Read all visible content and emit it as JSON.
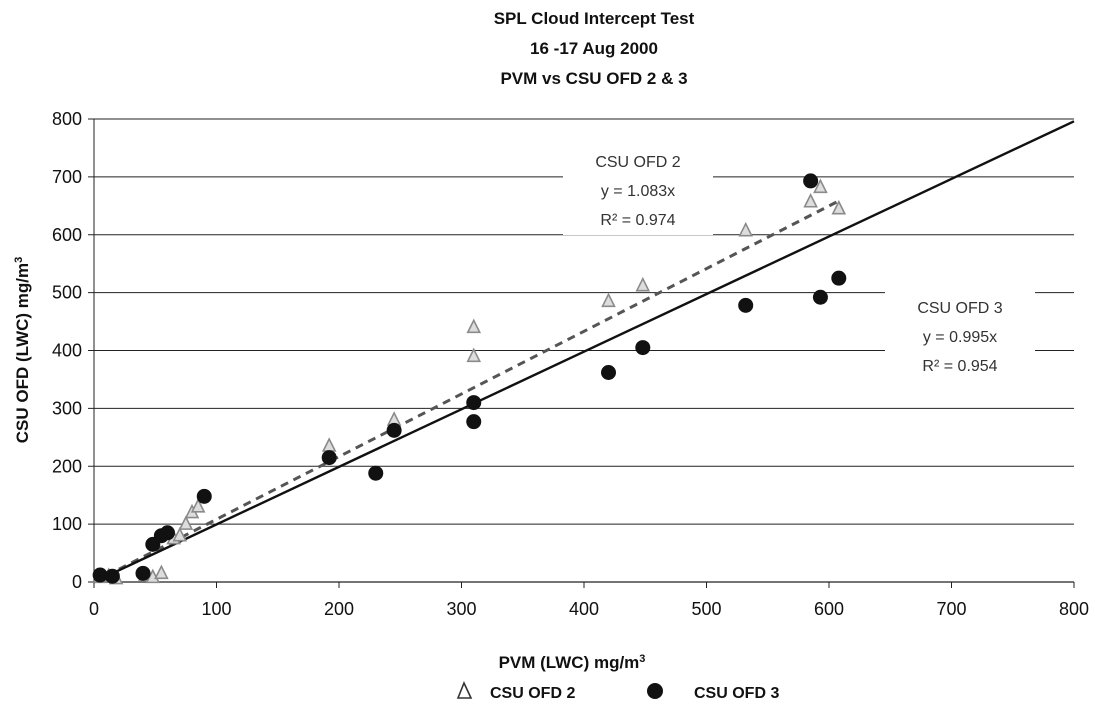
{
  "chart_data": {
    "type": "scatter",
    "title": [
      "SPL Cloud Intercept Test",
      "16 -17 Aug 2000",
      "PVM vs CSU OFD 2 &  3"
    ],
    "xlabel": "PVM (LWC) mg/m",
    "xlabel_sup": "3",
    "ylabel": "CSU OFD (LWC) mg/m",
    "ylabel_sup": "3",
    "xlim": [
      0,
      800
    ],
    "ylim": [
      0,
      800
    ],
    "xticks": [
      0,
      100,
      200,
      300,
      400,
      500,
      600,
      700,
      800
    ],
    "yticks": [
      0,
      100,
      200,
      300,
      400,
      500,
      600,
      700,
      800
    ],
    "grid": "horizontal",
    "series": [
      {
        "name": "CSU OFD 2",
        "marker": "triangle",
        "color": "#8a8a8a",
        "points": [
          [
            5,
            8
          ],
          [
            12,
            10
          ],
          [
            18,
            6
          ],
          [
            42,
            12
          ],
          [
            48,
            8
          ],
          [
            55,
            15
          ],
          [
            65,
            75
          ],
          [
            70,
            80
          ],
          [
            75,
            100
          ],
          [
            80,
            120
          ],
          [
            85,
            130
          ],
          [
            192,
            235
          ],
          [
            245,
            280
          ],
          [
            310,
            440
          ],
          [
            310,
            390
          ],
          [
            420,
            485
          ],
          [
            448,
            512
          ],
          [
            532,
            607
          ],
          [
            585,
            657
          ],
          [
            593,
            682
          ],
          [
            608,
            645
          ]
        ],
        "fit": {
          "slope": 1.083,
          "line_style": "dashed"
        },
        "annotation": [
          "CSU OFD 2",
          "y = 1.083x",
          "R² = 0.974"
        ]
      },
      {
        "name": "CSU OFD 3",
        "marker": "circle",
        "color": "#111111",
        "points": [
          [
            5,
            12
          ],
          [
            15,
            10
          ],
          [
            40,
            15
          ],
          [
            48,
            65
          ],
          [
            55,
            80
          ],
          [
            60,
            85
          ],
          [
            90,
            148
          ],
          [
            192,
            215
          ],
          [
            230,
            188
          ],
          [
            245,
            262
          ],
          [
            310,
            310
          ],
          [
            310,
            277
          ],
          [
            420,
            362
          ],
          [
            448,
            405
          ],
          [
            532,
            478
          ],
          [
            585,
            693
          ],
          [
            593,
            492
          ],
          [
            608,
            525
          ]
        ],
        "fit": {
          "slope": 0.995,
          "line_style": "solid"
        },
        "annotation": [
          "CSU OFD 3",
          "y = 0.995x",
          "R² = 0.954"
        ]
      }
    ],
    "legend_position": "bottom"
  }
}
